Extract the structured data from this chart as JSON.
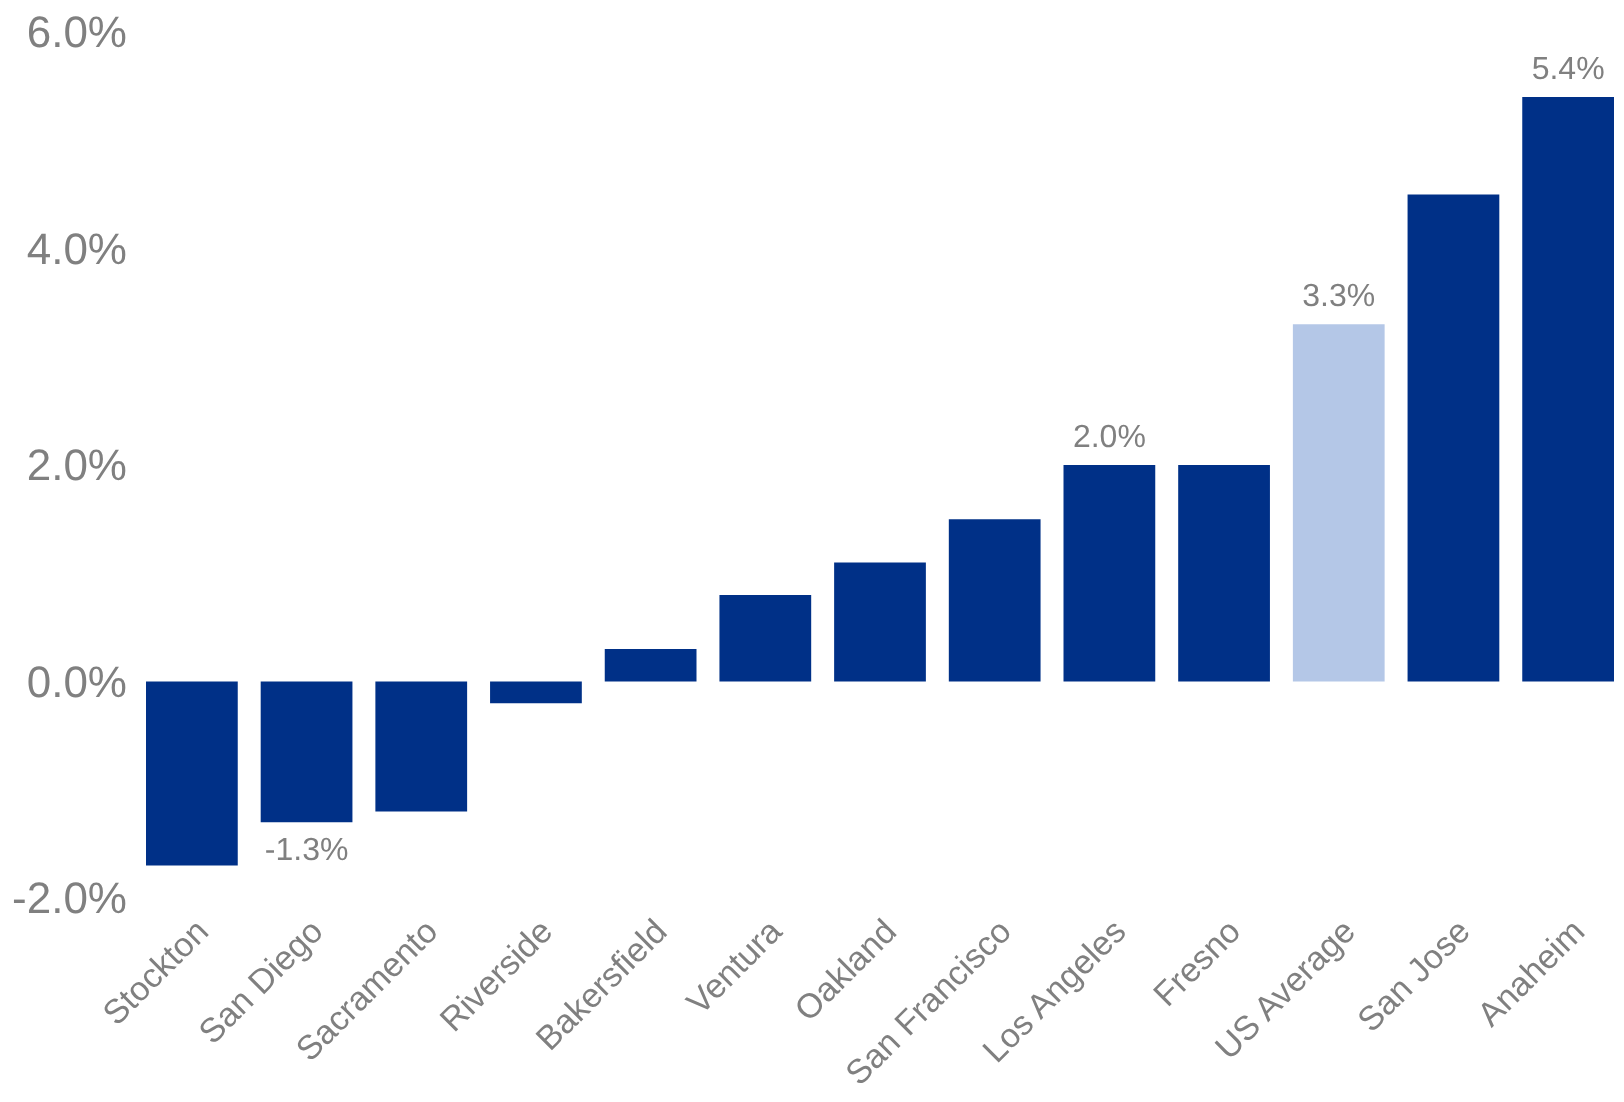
{
  "chart_data": {
    "type": "bar",
    "categories": [
      "Stockton",
      "San Diego",
      "Sacramento",
      "Riverside",
      "Bakersfield",
      "Ventura",
      "Oakland",
      "San Francisco",
      "Los Angeles",
      "Fresno",
      "US Average",
      "San Jose",
      "Anaheim"
    ],
    "values": [
      -1.7,
      -1.3,
      -1.2,
      -0.2,
      0.3,
      0.8,
      1.1,
      1.5,
      2.0,
      2.0,
      3.3,
      4.5,
      5.4
    ],
    "colors": [
      "#003087",
      "#003087",
      "#003087",
      "#003087",
      "#003087",
      "#003087",
      "#003087",
      "#003087",
      "#003087",
      "#003087",
      "#b4c7e7",
      "#003087",
      "#003087"
    ],
    "value_labels": [
      null,
      "-1.3%",
      null,
      null,
      null,
      null,
      null,
      null,
      "2.0%",
      null,
      "3.3%",
      null,
      "5.4%"
    ],
    "ylim": [
      -2,
      6
    ],
    "yticks": [
      {
        "value": -2,
        "label": "-2.0%"
      },
      {
        "value": 0,
        "label": "0.0%"
      },
      {
        "value": 2,
        "label": "2.0%"
      },
      {
        "value": 4,
        "label": "4.0%"
      },
      {
        "value": 6,
        "label": "6.0%"
      }
    ],
    "grid": false
  }
}
